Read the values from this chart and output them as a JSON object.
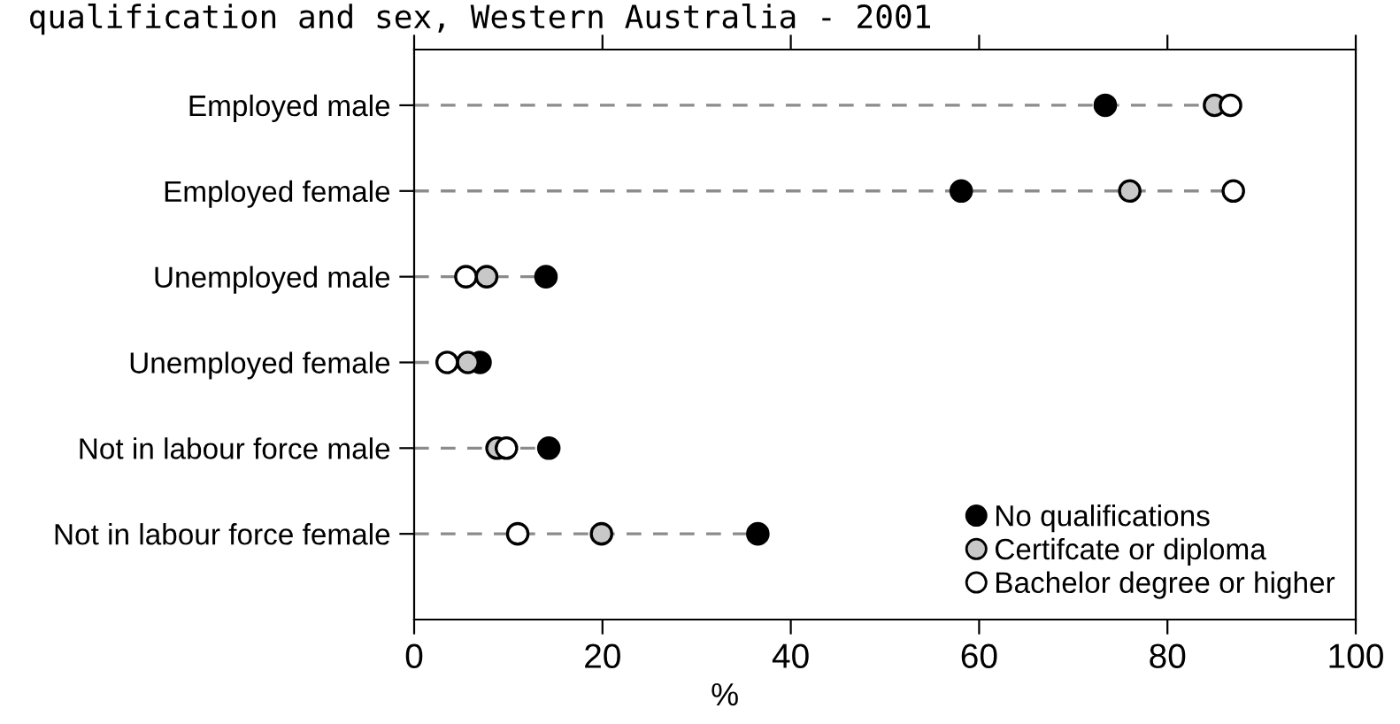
{
  "chart_data": {
    "type": "scatter",
    "orientation": "horizontal",
    "title": "qualification and sex, Western Australia - 2001",
    "xlabel": "%",
    "categories": [
      "Employed male",
      "Employed female",
      "Unemployed male",
      "Unemployed female",
      "Not in labour force male",
      "Not in labour force female"
    ],
    "series": [
      {
        "name": "No qualifications",
        "color": "#000000",
        "values": [
          73.4,
          58.1,
          14.0,
          7.0,
          14.3,
          36.5
        ]
      },
      {
        "name": "Certifcate or diploma",
        "color": "#c8c8c8",
        "values": [
          85.0,
          76.0,
          7.7,
          5.7,
          8.8,
          19.9
        ]
      },
      {
        "name": "Bachelor degree or higher",
        "color": "#ffffff",
        "values": [
          86.7,
          87.0,
          5.5,
          3.5,
          9.8,
          11.0
        ]
      }
    ],
    "xlim": [
      0,
      100
    ],
    "xticks": [
      0,
      20,
      40,
      60,
      80,
      100
    ],
    "marker": "circle",
    "line_style": "dashed",
    "legend": "bottom right",
    "grid": "y"
  }
}
